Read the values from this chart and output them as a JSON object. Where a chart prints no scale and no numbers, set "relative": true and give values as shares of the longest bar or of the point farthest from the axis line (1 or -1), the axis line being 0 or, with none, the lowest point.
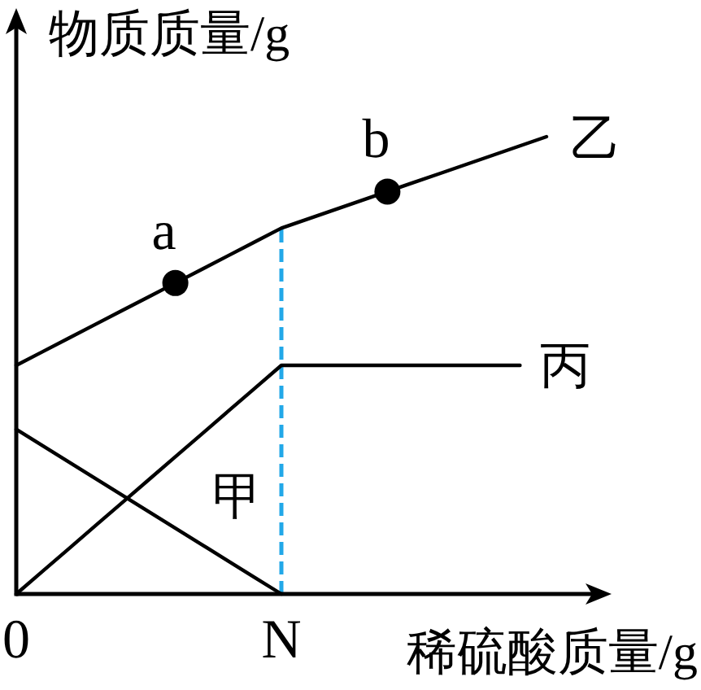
{
  "chart_data": {
    "type": "line",
    "relative": true,
    "xlabel": "稀硫酸质量/g",
    "ylabel": "物质质量/g",
    "categories": [
      "0",
      null,
      null,
      null,
      null,
      null,
      null,
      null,
      null,
      null,
      "N",
      null,
      null,
      null,
      null,
      null,
      null,
      null,
      null,
      null,
      null
    ],
    "series": [
      {
        "name": "甲",
        "color": "#000000",
        "values": [
          0.36,
          0.324,
          0.288,
          0.252,
          0.216,
          0.18,
          0.144,
          0.108,
          0.072,
          0.036,
          0,
          null,
          null,
          null,
          null,
          null,
          null,
          null,
          null,
          null,
          null
        ]
      },
      {
        "name": "乙",
        "color": "#000000",
        "values": [
          0.5,
          0.53,
          0.56,
          0.59,
          0.62,
          0.65,
          0.68,
          0.71,
          0.74,
          0.77,
          0.8,
          0.82,
          0.84,
          0.86,
          0.88,
          0.9,
          0.92,
          0.94,
          0.96,
          0.98,
          1
        ]
      },
      {
        "name": "丙",
        "color": "#000000",
        "values": [
          0,
          0.05,
          0.1,
          0.15,
          0.2,
          0.25,
          0.3,
          0.35,
          0.4,
          0.45,
          0.5,
          0.5,
          0.5,
          0.5,
          0.5,
          0.5,
          0.5,
          0.5,
          0.5,
          0.5,
          null
        ]
      },
      {
        "type": "scatter",
        "name": "a",
        "color": "#000000",
        "marker": "circle",
        "values": [
          null,
          null,
          null,
          null,
          null,
          null,
          0.68,
          null,
          null,
          null,
          null,
          null,
          null,
          null,
          null,
          null,
          null,
          null,
          null,
          null,
          null
        ]
      },
      {
        "type": "scatter",
        "name": "b",
        "color": "#000000",
        "marker": "circle",
        "values": [
          null,
          null,
          null,
          null,
          null,
          null,
          null,
          null,
          null,
          null,
          null,
          null,
          null,
          null,
          0.88,
          null,
          null,
          null,
          null,
          null,
          null
        ]
      }
    ],
    "ref_lines": [
      {
        "axis": "x",
        "value": "N",
        "color": "#22a8e8",
        "line_style": "dashed"
      }
    ]
  }
}
